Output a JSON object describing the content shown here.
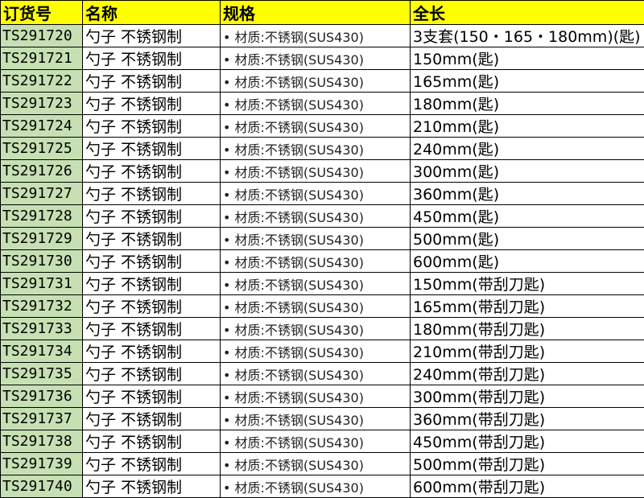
{
  "headers": [
    "订货号",
    "名称",
    "规格",
    "全长"
  ],
  "rows": [
    {
      "code": "TS291720",
      "name": "勺子  不锈钢制",
      "spec": "• 材质:不锈钢(SUS430)",
      "length": "3支套(150・165・180mm)(匙)"
    },
    {
      "code": "TS291721",
      "name": "勺子  不锈钢制",
      "spec": "• 材质:不锈钢(SUS430)",
      "length": "150mm(匙)"
    },
    {
      "code": "TS291722",
      "name": "勺子  不锈钢制",
      "spec": "• 材质:不锈钢(SUS430)",
      "length": "165mm(匙)"
    },
    {
      "code": "TS291723",
      "name": "勺子  不锈钢制",
      "spec": "• 材质:不锈钢(SUS430)",
      "length": "180mm(匙)"
    },
    {
      "code": "TS291724",
      "name": "勺子  不锈钢制",
      "spec": "• 材质:不锈钢(SUS430)",
      "length": "210mm(匙)"
    },
    {
      "code": "TS291725",
      "name": "勺子  不锈钢制",
      "spec": "• 材质:不锈钢(SUS430)",
      "length": "240mm(匙)"
    },
    {
      "code": "TS291726",
      "name": "勺子  不锈钢制",
      "spec": "• 材质:不锈钢(SUS430)",
      "length": "300mm(匙)"
    },
    {
      "code": "TS291727",
      "name": "勺子  不锈钢制",
      "spec": "• 材质:不锈钢(SUS430)",
      "length": "360mm(匙)"
    },
    {
      "code": "TS291728",
      "name": "勺子  不锈钢制",
      "spec": "• 材质:不锈钢(SUS430)",
      "length": "450mm(匙)"
    },
    {
      "code": "TS291729",
      "name": "勺子  不锈钢制",
      "spec": "• 材质:不锈钢(SUS430)",
      "length": "500mm(匙)"
    },
    {
      "code": "TS291730",
      "name": "勺子  不锈钢制",
      "spec": "• 材质:不锈钢(SUS430)",
      "length": "600mm(匙)"
    },
    {
      "code": "TS291731",
      "name": "勺子  不锈钢制",
      "spec": "• 材质:不锈钢(SUS430)",
      "length": "150mm(带刮刀匙)"
    },
    {
      "code": "TS291732",
      "name": "勺子  不锈钢制",
      "spec": "• 材质:不锈钢(SUS430)",
      "length": "165mm(带刮刀匙)"
    },
    {
      "code": "TS291733",
      "name": "勺子  不锈钢制",
      "spec": "• 材质:不锈钢(SUS430)",
      "length": "180mm(带刮刀匙)"
    },
    {
      "code": "TS291734",
      "name": "勺子  不锈钢制",
      "spec": "• 材质:不锈钢(SUS430)",
      "length": "210mm(带刮刀匙)"
    },
    {
      "code": "TS291735",
      "name": "勺子  不锈钢制",
      "spec": "• 材质:不锈钢(SUS430)",
      "length": "240mm(带刮刀匙)"
    },
    {
      "code": "TS291736",
      "name": "勺子  不锈钢制",
      "spec": "• 材质:不锈钢(SUS430)",
      "length": "300mm(带刮刀匙)"
    },
    {
      "code": "TS291737",
      "name": "勺子  不锈钢制",
      "spec": "• 材质:不锈钢(SUS430)",
      "length": "360mm(带刮刀匙)"
    },
    {
      "code": "TS291738",
      "name": "勺子  不锈钢制",
      "spec": "• 材质:不锈钢(SUS430)",
      "length": "450mm(带刮刀匙)"
    },
    {
      "code": "TS291739",
      "name": "勺子  不锈钢制",
      "spec": "• 材质:不锈钢(SUS430)",
      "length": "500mm(带刮刀匙)"
    },
    {
      "code": "TS291740",
      "name": "勺子  不锈钢制",
      "spec": "• 材质:不锈钢(SUS430)",
      "length": "600mm(带刮刀匙)"
    }
  ],
  "colors": {
    "header_bg": "#ffff00",
    "code_bg": "#c6e0b4"
  }
}
